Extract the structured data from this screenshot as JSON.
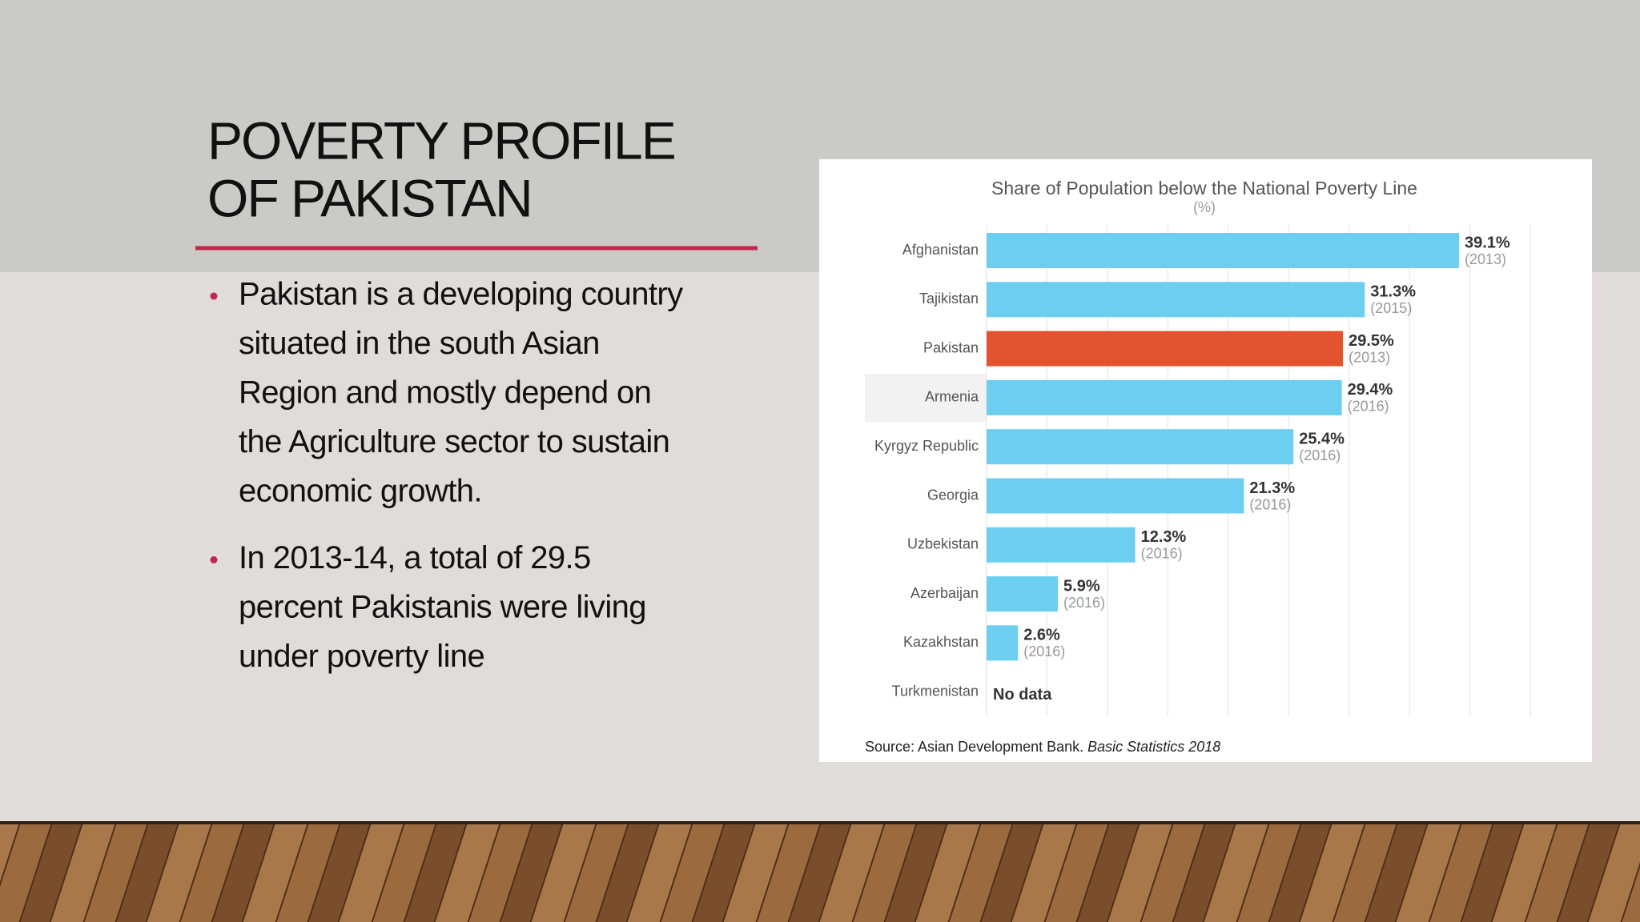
{
  "slide": {
    "title_lines": [
      "POVERTY PROFILE",
      "OF PAKISTAN"
    ],
    "bullets": [
      [
        "Pakistan is a developing country",
        "situated in the south Asian",
        "Region and mostly depend on",
        "the Agriculture sector to sustain",
        "economic growth."
      ],
      [
        "In 2013-14, a total of 29.5",
        "percent Pakistanis were living",
        "under poverty line"
      ]
    ]
  },
  "chart_data": {
    "type": "hbar",
    "title": "Share of Population below the National Poverty Line",
    "subtitle": "(%)",
    "categories": [
      "Afghanistan",
      "Tajikistan",
      "Pakistan",
      "Armenia",
      "Kyrgyz Republic",
      "Georgia",
      "Uzbekistan",
      "Azerbaijan",
      "Kazakhstan",
      "Turkmenistan"
    ],
    "values": [
      39.1,
      31.3,
      29.5,
      29.4,
      25.4,
      21.3,
      12.3,
      5.9,
      2.6,
      null
    ],
    "value_labels": [
      "39.1%",
      "31.3%",
      "29.5%",
      "29.4%",
      "25.4%",
      "21.3%",
      "12.3%",
      "5.9%",
      "2.6%",
      "No data"
    ],
    "years": [
      "(2013)",
      "(2015)",
      "(2013)",
      "(2016)",
      "(2016)",
      "(2016)",
      "(2016)",
      "(2016)",
      "(2016)",
      null
    ],
    "colors": [
      "#6ccff0",
      "#6ccff0",
      "#e4532f",
      "#6ccff0",
      "#6ccff0",
      "#6ccff0",
      "#6ccff0",
      "#6ccff0",
      "#6ccff0",
      null
    ],
    "xlim": [
      0,
      45
    ],
    "xticks": [
      0,
      5,
      10,
      15,
      20,
      25,
      30,
      35,
      40,
      45
    ],
    "grid": true,
    "source": "Source: Asian Development Bank. ",
    "source_italic": "Basic Statistics 2018"
  }
}
